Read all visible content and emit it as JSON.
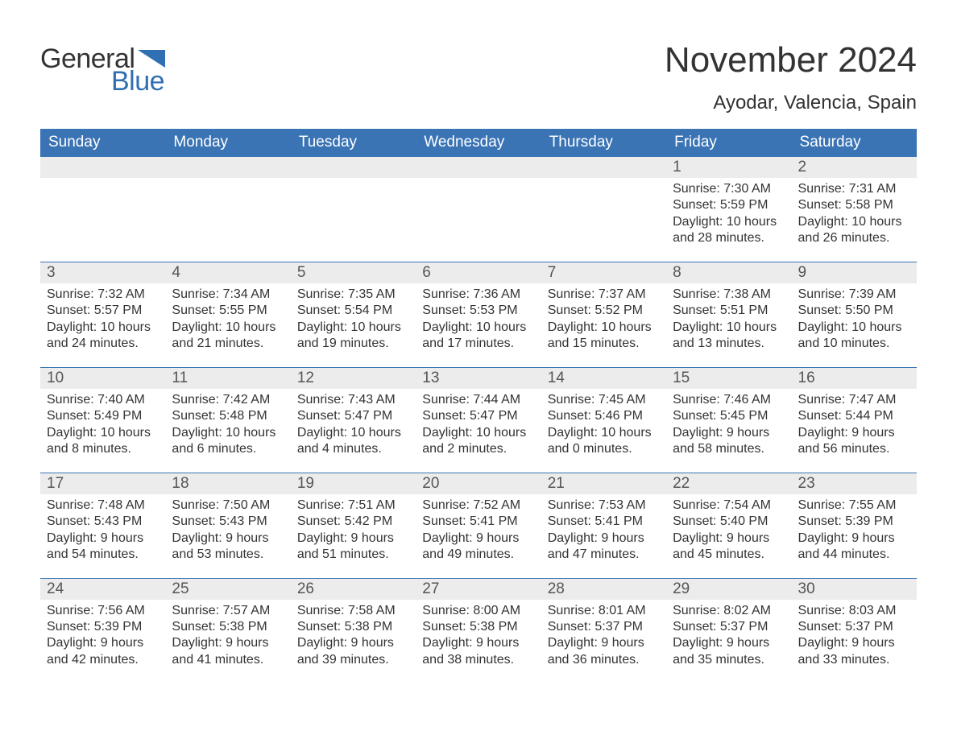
{
  "brand": {
    "word1": "General",
    "word2": "Blue",
    "accent_color": "#2f6fb2"
  },
  "header": {
    "title": "November 2024",
    "location": "Ayodar, Valencia, Spain"
  },
  "calendar": {
    "header_bg": "#3a74b4",
    "header_fg": "#ffffff",
    "daynum_bg": "#ececec",
    "week_border": "#3a74b4",
    "text_color": "#333333",
    "columns": [
      "Sunday",
      "Monday",
      "Tuesday",
      "Wednesday",
      "Thursday",
      "Friday",
      "Saturday"
    ],
    "weeks": [
      [
        {
          "empty": true
        },
        {
          "empty": true
        },
        {
          "empty": true
        },
        {
          "empty": true
        },
        {
          "empty": true
        },
        {
          "day": "1",
          "sunrise": "7:30 AM",
          "sunset": "5:59 PM",
          "daylight": "10 hours and 28 minutes."
        },
        {
          "day": "2",
          "sunrise": "7:31 AM",
          "sunset": "5:58 PM",
          "daylight": "10 hours and 26 minutes."
        }
      ],
      [
        {
          "day": "3",
          "sunrise": "7:32 AM",
          "sunset": "5:57 PM",
          "daylight": "10 hours and 24 minutes."
        },
        {
          "day": "4",
          "sunrise": "7:34 AM",
          "sunset": "5:55 PM",
          "daylight": "10 hours and 21 minutes."
        },
        {
          "day": "5",
          "sunrise": "7:35 AM",
          "sunset": "5:54 PM",
          "daylight": "10 hours and 19 minutes."
        },
        {
          "day": "6",
          "sunrise": "7:36 AM",
          "sunset": "5:53 PM",
          "daylight": "10 hours and 17 minutes."
        },
        {
          "day": "7",
          "sunrise": "7:37 AM",
          "sunset": "5:52 PM",
          "daylight": "10 hours and 15 minutes."
        },
        {
          "day": "8",
          "sunrise": "7:38 AM",
          "sunset": "5:51 PM",
          "daylight": "10 hours and 13 minutes."
        },
        {
          "day": "9",
          "sunrise": "7:39 AM",
          "sunset": "5:50 PM",
          "daylight": "10 hours and 10 minutes."
        }
      ],
      [
        {
          "day": "10",
          "sunrise": "7:40 AM",
          "sunset": "5:49 PM",
          "daylight": "10 hours and 8 minutes."
        },
        {
          "day": "11",
          "sunrise": "7:42 AM",
          "sunset": "5:48 PM",
          "daylight": "10 hours and 6 minutes."
        },
        {
          "day": "12",
          "sunrise": "7:43 AM",
          "sunset": "5:47 PM",
          "daylight": "10 hours and 4 minutes."
        },
        {
          "day": "13",
          "sunrise": "7:44 AM",
          "sunset": "5:47 PM",
          "daylight": "10 hours and 2 minutes."
        },
        {
          "day": "14",
          "sunrise": "7:45 AM",
          "sunset": "5:46 PM",
          "daylight": "10 hours and 0 minutes."
        },
        {
          "day": "15",
          "sunrise": "7:46 AM",
          "sunset": "5:45 PM",
          "daylight": "9 hours and 58 minutes."
        },
        {
          "day": "16",
          "sunrise": "7:47 AM",
          "sunset": "5:44 PM",
          "daylight": "9 hours and 56 minutes."
        }
      ],
      [
        {
          "day": "17",
          "sunrise": "7:48 AM",
          "sunset": "5:43 PM",
          "daylight": "9 hours and 54 minutes."
        },
        {
          "day": "18",
          "sunrise": "7:50 AM",
          "sunset": "5:43 PM",
          "daylight": "9 hours and 53 minutes."
        },
        {
          "day": "19",
          "sunrise": "7:51 AM",
          "sunset": "5:42 PM",
          "daylight": "9 hours and 51 minutes."
        },
        {
          "day": "20",
          "sunrise": "7:52 AM",
          "sunset": "5:41 PM",
          "daylight": "9 hours and 49 minutes."
        },
        {
          "day": "21",
          "sunrise": "7:53 AM",
          "sunset": "5:41 PM",
          "daylight": "9 hours and 47 minutes."
        },
        {
          "day": "22",
          "sunrise": "7:54 AM",
          "sunset": "5:40 PM",
          "daylight": "9 hours and 45 minutes."
        },
        {
          "day": "23",
          "sunrise": "7:55 AM",
          "sunset": "5:39 PM",
          "daylight": "9 hours and 44 minutes."
        }
      ],
      [
        {
          "day": "24",
          "sunrise": "7:56 AM",
          "sunset": "5:39 PM",
          "daylight": "9 hours and 42 minutes."
        },
        {
          "day": "25",
          "sunrise": "7:57 AM",
          "sunset": "5:38 PM",
          "daylight": "9 hours and 41 minutes."
        },
        {
          "day": "26",
          "sunrise": "7:58 AM",
          "sunset": "5:38 PM",
          "daylight": "9 hours and 39 minutes."
        },
        {
          "day": "27",
          "sunrise": "8:00 AM",
          "sunset": "5:38 PM",
          "daylight": "9 hours and 38 minutes."
        },
        {
          "day": "28",
          "sunrise": "8:01 AM",
          "sunset": "5:37 PM",
          "daylight": "9 hours and 36 minutes."
        },
        {
          "day": "29",
          "sunrise": "8:02 AM",
          "sunset": "5:37 PM",
          "daylight": "9 hours and 35 minutes."
        },
        {
          "day": "30",
          "sunrise": "8:03 AM",
          "sunset": "5:37 PM",
          "daylight": "9 hours and 33 minutes."
        }
      ]
    ],
    "labels": {
      "sunrise": "Sunrise:",
      "sunset": "Sunset:",
      "daylight": "Daylight:"
    }
  }
}
